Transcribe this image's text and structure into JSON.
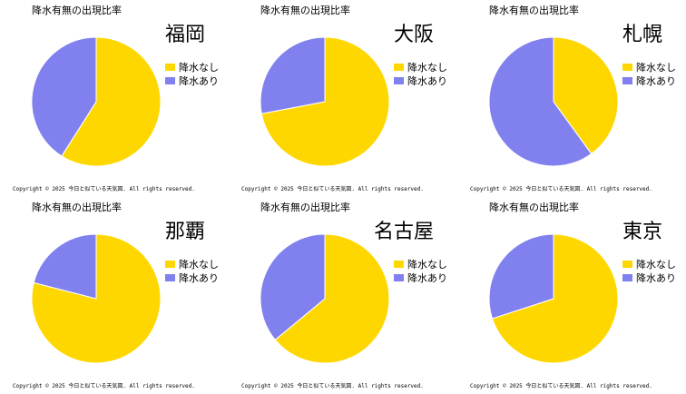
{
  "copyright": "Copyright ©  2025  今日と似ている天気図. All rights reserved.",
  "colors": {
    "no_rain": "#FFD700",
    "rain": "#8080EE"
  },
  "chart_data": [
    {
      "type": "pie",
      "title": "降水有無の出現比率",
      "city": "福岡",
      "legend_placement": "right",
      "labels": [
        "降水なし",
        "降水あり"
      ],
      "values": [
        59,
        41
      ]
    },
    {
      "type": "pie",
      "title": "降水有無の出現比率",
      "city": "大阪",
      "legend_placement": "right",
      "labels": [
        "降水なし",
        "降水あり"
      ],
      "values": [
        72,
        28
      ]
    },
    {
      "type": "pie",
      "title": "降水有無の出現比率",
      "city": "札幌",
      "legend_placement": "right",
      "labels": [
        "降水なし",
        "降水あり"
      ],
      "values": [
        40,
        60
      ]
    },
    {
      "type": "pie",
      "title": "降水有無の出現比率",
      "city": "那覇",
      "legend_placement": "right",
      "labels": [
        "降水なし",
        "降水あり"
      ],
      "values": [
        79,
        21
      ]
    },
    {
      "type": "pie",
      "title": "降水有無の出現比率",
      "city": "名古屋",
      "legend_placement": "right",
      "labels": [
        "降水なし",
        "降水あり"
      ],
      "values": [
        64,
        36
      ]
    },
    {
      "type": "pie",
      "title": "降水有無の出現比率",
      "city": "東京",
      "legend_placement": "right",
      "labels": [
        "降水なし",
        "降水あり"
      ],
      "values": [
        70,
        30
      ]
    }
  ]
}
